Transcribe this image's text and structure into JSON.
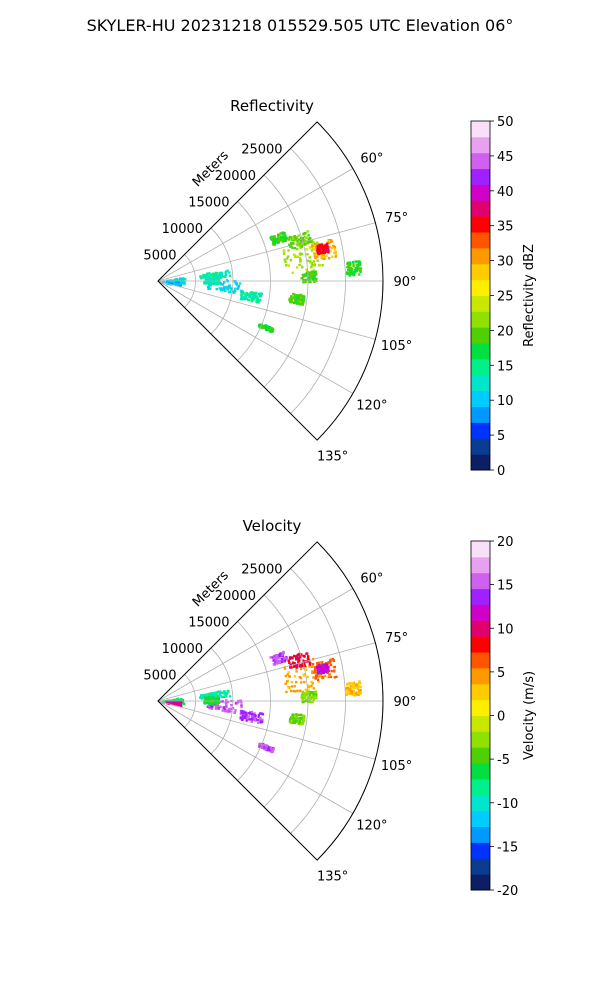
{
  "page": {
    "title": "SKYLER-HU  20231218  015529.505 UTC Elevation 06°"
  },
  "chart_data": [
    {
      "type": "heatmap",
      "subtype": "polar sector (PPI radar scan)",
      "title": "Reflectivity",
      "range_label": "Meters",
      "range_ticks": [
        "5000",
        "10000",
        "15000",
        "20000",
        "25000"
      ],
      "range_values": [
        5000,
        10000,
        15000,
        20000,
        25000
      ],
      "r_max": 30000,
      "azimuth_range_deg": [
        45,
        135
      ],
      "azimuth_ticks": [
        "60°",
        "75°",
        "90°",
        "105°",
        "120°",
        "135°"
      ],
      "azimuth_values": [
        60,
        75,
        90,
        105,
        120,
        135
      ],
      "grid": true,
      "colorbar": {
        "label": "Reflectivity dBZ",
        "range": [
          0,
          50
        ],
        "ticks": [
          "0",
          "5",
          "10",
          "15",
          "20",
          "25",
          "30",
          "35",
          "40",
          "45",
          "50"
        ],
        "tick_values": [
          0,
          5,
          10,
          15,
          20,
          25,
          30,
          35,
          40,
          45,
          50
        ],
        "colors": [
          "#0b1e66",
          "#0a3d91",
          "#0033ff",
          "#0099ff",
          "#00ccff",
          "#00e5cc",
          "#00f08c",
          "#00e040",
          "#50d000",
          "#90e000",
          "#c8e800",
          "#ffee00",
          "#ffcc00",
          "#ff9900",
          "#ff5500",
          "#ff0000",
          "#e0006e",
          "#d000c8",
          "#a020ff",
          "#d060f0",
          "#e8a0f0",
          "#f8e0f8"
        ]
      },
      "echo_regions": [
        {
          "az": [
            80,
            86
          ],
          "r": [
            5500,
            9500
          ],
          "value": 14
        },
        {
          "az": [
            88,
            98
          ],
          "r": [
            6500,
            11000
          ],
          "value": 11
        },
        {
          "az": [
            84,
            92
          ],
          "r": [
            6000,
            8000
          ],
          "value": 13
        },
        {
          "az": [
            96,
            102
          ],
          "r": [
            11000,
            14000
          ],
          "value": 14
        },
        {
          "az": [
            80,
            94
          ],
          "r": [
            500,
            3500
          ],
          "value": 12
        },
        {
          "az": [
            88,
            100
          ],
          "r": [
            1000,
            3000
          ],
          "value": 10
        },
        {
          "az": [
            74,
            86
          ],
          "r": [
            17000,
            22000
          ],
          "value": 22
        },
        {
          "az": [
            76,
            82
          ],
          "r": [
            21000,
            24000
          ],
          "value": 30
        },
        {
          "az": [
            77,
            80
          ],
          "r": [
            21500,
            23000
          ],
          "value": 36
        },
        {
          "az": [
            71,
            76
          ],
          "r": [
            18000,
            21000
          ],
          "value": 20
        },
        {
          "az": [
            68,
            72
          ],
          "r": [
            16000,
            18000
          ],
          "value": 18
        },
        {
          "az": [
            86,
            90
          ],
          "r": [
            19000,
            21000
          ],
          "value": 19
        },
        {
          "az": [
            95,
            99
          ],
          "r": [
            17500,
            19500
          ],
          "value": 19
        },
        {
          "az": [
            112,
            114
          ],
          "r": [
            14500,
            16500
          ],
          "value": 18
        },
        {
          "az": [
            84,
            88
          ],
          "r": [
            25000,
            27000
          ],
          "value": 18
        }
      ]
    },
    {
      "type": "heatmap",
      "subtype": "polar sector (PPI radar scan)",
      "title": "Velocity",
      "range_label": "Meters",
      "range_ticks": [
        "5000",
        "10000",
        "15000",
        "20000",
        "25000"
      ],
      "range_values": [
        5000,
        10000,
        15000,
        20000,
        25000
      ],
      "r_max": 30000,
      "azimuth_range_deg": [
        45,
        135
      ],
      "azimuth_ticks": [
        "60°",
        "75°",
        "90°",
        "105°",
        "120°",
        "135°"
      ],
      "azimuth_values": [
        60,
        75,
        90,
        105,
        120,
        135
      ],
      "grid": true,
      "colorbar": {
        "label": "Velocity (m/s)",
        "range": [
          -20,
          20
        ],
        "ticks": [
          "-20",
          "-15",
          "-10",
          "-5",
          "0",
          "5",
          "10",
          "15",
          "20"
        ],
        "tick_values": [
          -20,
          -15,
          -10,
          -5,
          0,
          5,
          10,
          15,
          20
        ],
        "colors": [
          "#0b1e66",
          "#0a3d91",
          "#0033ff",
          "#0099ff",
          "#00ccff",
          "#00e5cc",
          "#00f08c",
          "#00e040",
          "#50d000",
          "#90e000",
          "#c8e800",
          "#ffee00",
          "#ffcc00",
          "#ff9900",
          "#ff5500",
          "#ff0000",
          "#e0006e",
          "#d000c8",
          "#a020ff",
          "#d060f0",
          "#e8a0f0",
          "#f8e0f8"
        ]
      },
      "echo_regions": [
        {
          "az": [
            80,
            86
          ],
          "r": [
            5500,
            9500
          ],
          "value": -9
        },
        {
          "az": [
            88,
            98
          ],
          "r": [
            6500,
            11000
          ],
          "value": 15
        },
        {
          "az": [
            84,
            92
          ],
          "r": [
            6000,
            8000
          ],
          "value": -6
        },
        {
          "az": [
            96,
            102
          ],
          "r": [
            11000,
            14000
          ],
          "value": 14
        },
        {
          "az": [
            80,
            94
          ],
          "r": [
            500,
            3500
          ],
          "value": -7
        },
        {
          "az": [
            88,
            100
          ],
          "r": [
            1000,
            3000
          ],
          "value": 11
        },
        {
          "az": [
            74,
            86
          ],
          "r": [
            17000,
            22000
          ],
          "value": 4
        },
        {
          "az": [
            76,
            82
          ],
          "r": [
            21000,
            24000
          ],
          "value": 6
        },
        {
          "az": [
            77,
            80
          ],
          "r": [
            21500,
            23000
          ],
          "value": 12
        },
        {
          "az": [
            71,
            76
          ],
          "r": [
            18000,
            21000
          ],
          "value": 9
        },
        {
          "az": [
            68,
            72
          ],
          "r": [
            16000,
            18000
          ],
          "value": 15
        },
        {
          "az": [
            86,
            90
          ],
          "r": [
            19000,
            21000
          ],
          "value": -3
        },
        {
          "az": [
            95,
            99
          ],
          "r": [
            17500,
            19500
          ],
          "value": -4
        },
        {
          "az": [
            112,
            114
          ],
          "r": [
            14500,
            16500
          ],
          "value": 15
        },
        {
          "az": [
            84,
            88
          ],
          "r": [
            25000,
            27000
          ],
          "value": 3
        }
      ]
    }
  ]
}
